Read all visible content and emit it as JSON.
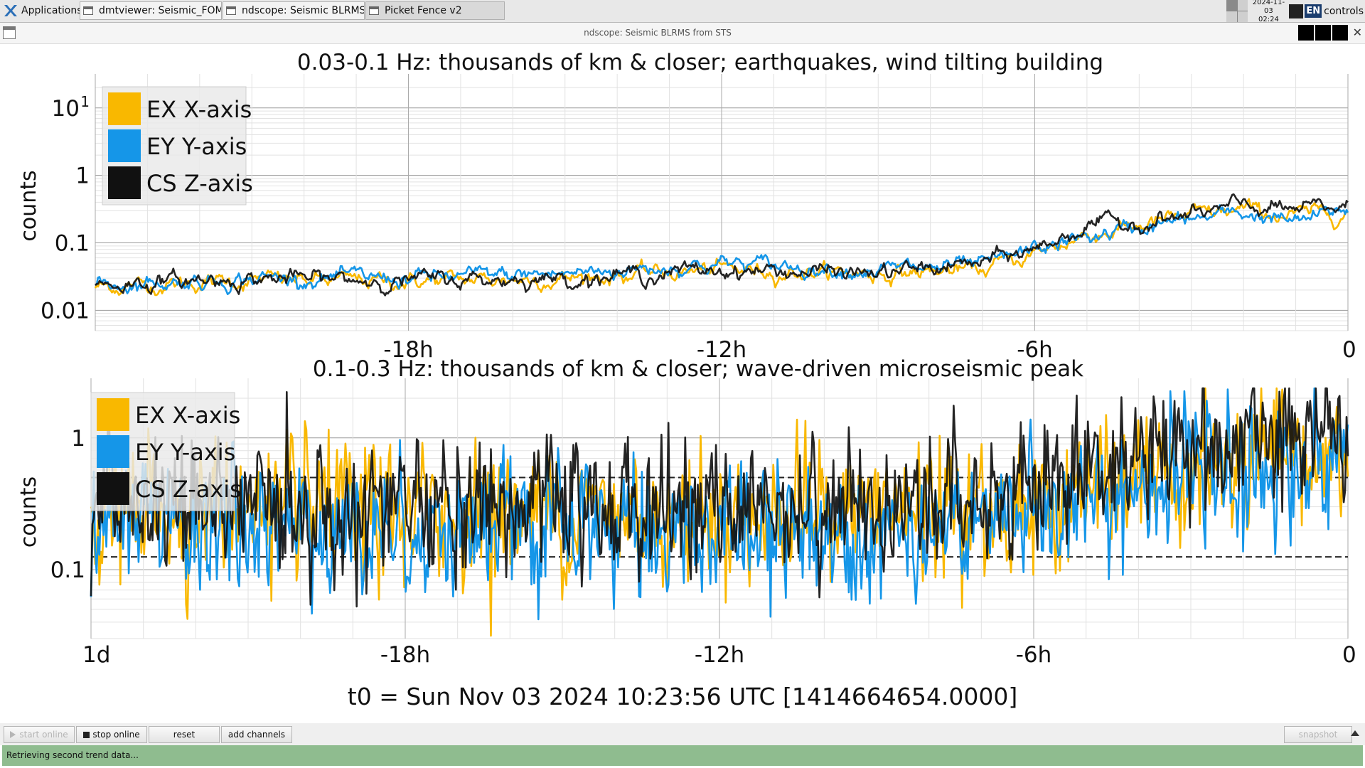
{
  "taskbar": {
    "apps_label": "Applications",
    "tasks": [
      {
        "label": "dmtviewer: Seismic_FOM_..."
      },
      {
        "label": "ndscope: Seismic BLRMS f..."
      },
      {
        "label": "Picket Fence v2"
      }
    ],
    "clock_date": "2024-11-03",
    "clock_time": "02:24",
    "keyboard": "EN",
    "user": "controls"
  },
  "window": {
    "title": "ndscope: Seismic BLRMS from STS"
  },
  "plots": [
    {
      "title": "0.03-0.1 Hz: thousands of km & closer; earthquakes, wind tilting building",
      "ylabel": "counts",
      "yticks": [
        "10",
        "1",
        "0.1",
        "0.01"
      ],
      "ytick_sup": "1",
      "xticks": [
        "-18h",
        "-12h",
        "-6h",
        "0"
      ],
      "legend": [
        "EX X-axis",
        "EY Y-axis",
        "CS Z-axis"
      ]
    },
    {
      "title": "0.1-0.3 Hz: thousands of km & closer; wave-driven microseismic peak",
      "ylabel": "counts",
      "yticks": [
        "1",
        "0.1"
      ],
      "xticks": [
        "1d",
        "-18h",
        "-12h",
        "-6h",
        "0"
      ],
      "legend": [
        "EX X-axis",
        "EY Y-axis",
        "CS Z-axis"
      ]
    }
  ],
  "t0_label": "t0 = Sun Nov 03 2024 10:23:56 UTC [1414664654.0000]",
  "controls": {
    "start_online": "start online",
    "stop_online": "stop online",
    "reset": "reset",
    "add_channels": "add channels",
    "snapshot": "snapshot"
  },
  "status": "Retrieving second trend data...",
  "colors": {
    "ex": "#f9b800",
    "ey": "#1596e8",
    "cs": "#111111",
    "status_bg": "#8fbc8f"
  },
  "chart_data": [
    {
      "type": "line",
      "title": "0.03-0.1 Hz: thousands of km & closer; earthquakes, wind tilting building",
      "ylabel": "counts",
      "yscale": "log",
      "ylim": [
        0.005,
        25
      ],
      "xlim": [
        -24,
        0
      ],
      "x_unit": "hours",
      "grid": true,
      "legend_position": "top-left",
      "x": [
        -24,
        -21,
        -18,
        -15,
        -12,
        -9,
        -7,
        -6,
        -5,
        -4,
        -3,
        -2,
        -1,
        0
      ],
      "series": [
        {
          "name": "EX X-axis",
          "values": [
            0.022,
            0.028,
            0.027,
            0.03,
            0.04,
            0.035,
            0.04,
            0.07,
            0.13,
            0.18,
            0.25,
            0.3,
            0.25,
            0.3
          ]
        },
        {
          "name": "EY Y-axis",
          "values": [
            0.024,
            0.03,
            0.03,
            0.035,
            0.05,
            0.04,
            0.045,
            0.08,
            0.12,
            0.17,
            0.22,
            0.28,
            0.2,
            0.32
          ]
        },
        {
          "name": "CS Z-axis",
          "values": [
            0.024,
            0.03,
            0.028,
            0.03,
            0.04,
            0.035,
            0.05,
            0.08,
            0.18,
            0.2,
            0.25,
            0.35,
            0.3,
            0.35
          ]
        }
      ]
    },
    {
      "type": "line",
      "title": "0.1-0.3 Hz: thousands of km & closer; wave-driven microseismic peak",
      "ylabel": "counts",
      "yscale": "log",
      "ylim": [
        0.03,
        2.5
      ],
      "xlim": [
        -24,
        0
      ],
      "x_unit": "hours",
      "grid": true,
      "legend_position": "top-left",
      "threshold_lines": [
        0.5,
        0.125
      ],
      "x": [
        -24,
        -21,
        -18,
        -15,
        -12,
        -9,
        -7,
        -6,
        -5,
        -4,
        -3,
        -2,
        -1,
        0
      ],
      "series": [
        {
          "name": "EX X-axis",
          "values": [
            0.28,
            0.28,
            0.27,
            0.27,
            0.27,
            0.27,
            0.28,
            0.3,
            0.38,
            0.45,
            0.55,
            0.6,
            0.65,
            0.7
          ]
        },
        {
          "name": "EY Y-axis",
          "values": [
            0.22,
            0.21,
            0.21,
            0.2,
            0.2,
            0.21,
            0.22,
            0.28,
            0.3,
            0.4,
            0.5,
            0.55,
            0.6,
            0.75
          ]
        },
        {
          "name": "CS Z-axis",
          "values": [
            0.3,
            0.3,
            0.3,
            0.29,
            0.3,
            0.32,
            0.35,
            0.45,
            0.6,
            0.75,
            0.85,
            0.9,
            0.95,
            1.0
          ]
        }
      ]
    }
  ]
}
